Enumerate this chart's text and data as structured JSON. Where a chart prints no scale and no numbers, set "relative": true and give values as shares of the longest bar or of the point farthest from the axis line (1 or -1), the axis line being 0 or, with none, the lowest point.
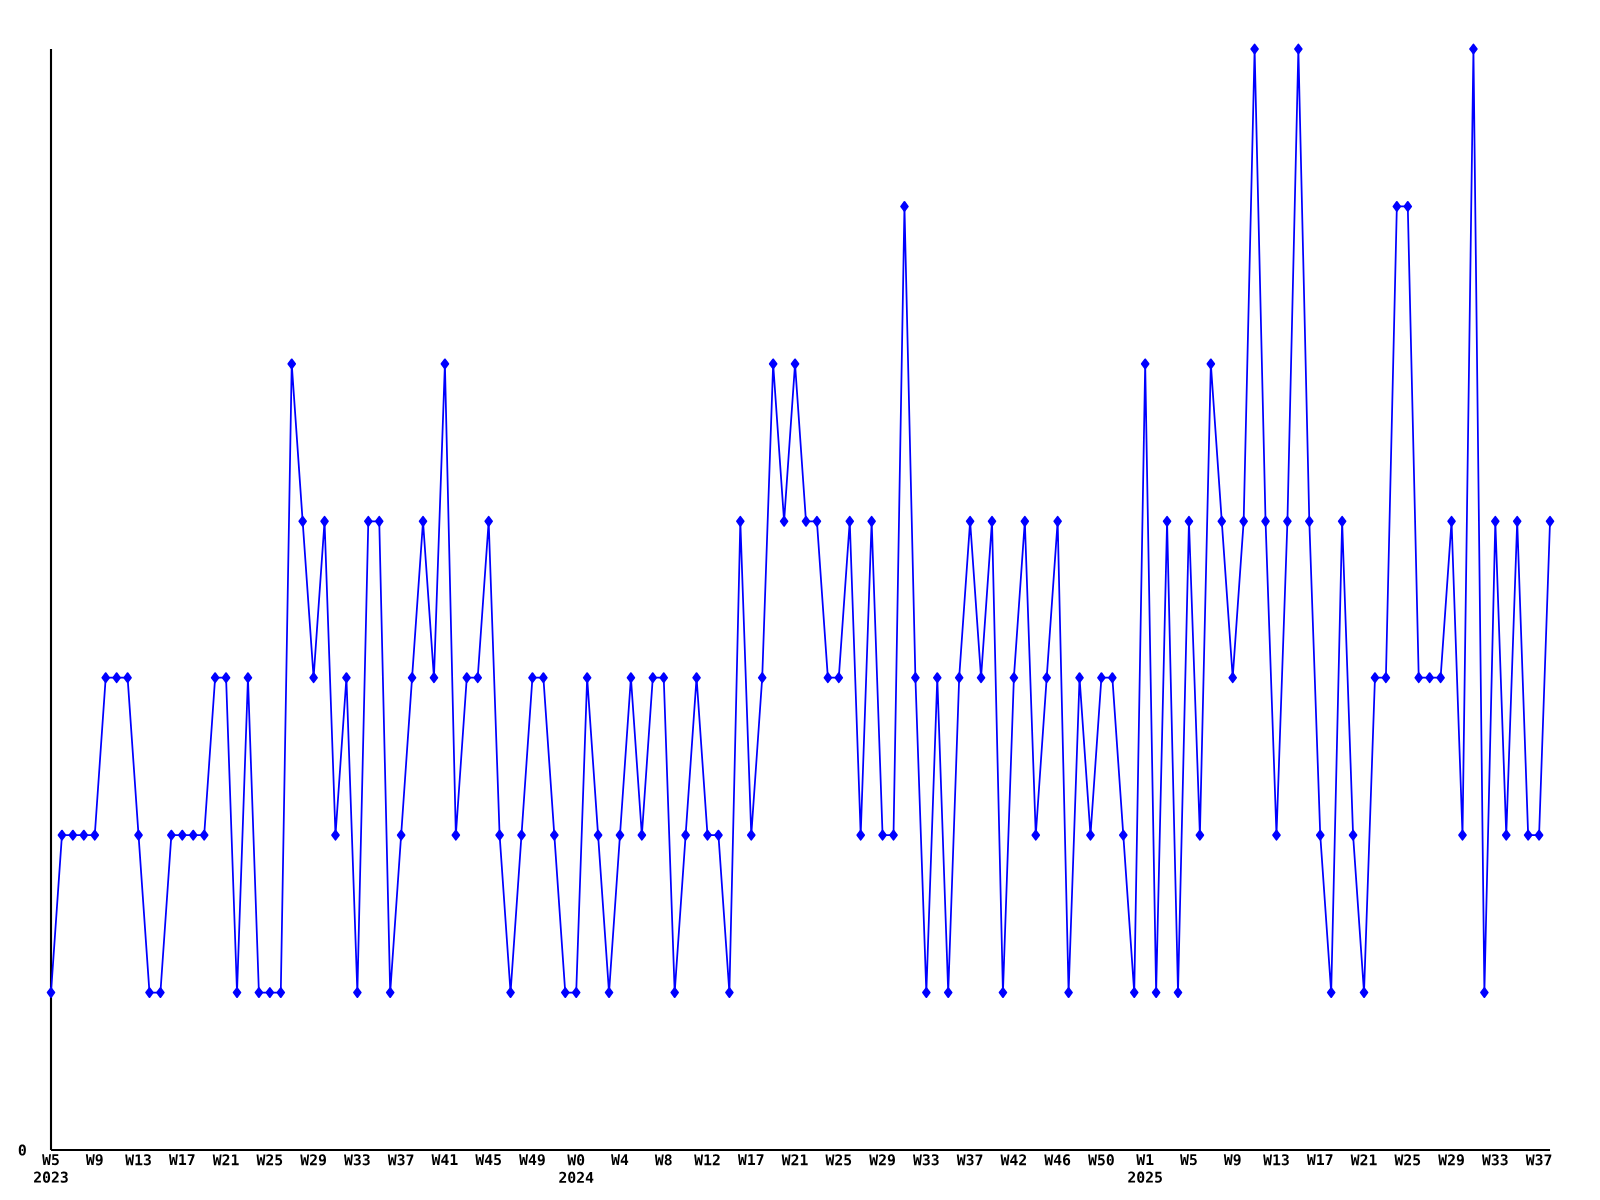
{
  "chart_data": {
    "type": "line",
    "relative": true,
    "color": "#0000ff",
    "marker": "diamond",
    "line_style": "solid",
    "annotations": [
      "0"
    ],
    "categories": [
      "W5 2023",
      null,
      null,
      null,
      "W9",
      null,
      null,
      null,
      "W13",
      null,
      null,
      null,
      "W17",
      null,
      null,
      null,
      "W21",
      null,
      null,
      null,
      "W25",
      null,
      null,
      null,
      "W29",
      null,
      null,
      null,
      "W33",
      null,
      null,
      null,
      "W37",
      null,
      null,
      null,
      "W41",
      null,
      null,
      null,
      "W45",
      null,
      null,
      null,
      "W49",
      null,
      null,
      null,
      "W0 2024",
      null,
      null,
      null,
      "W4",
      null,
      null,
      null,
      "W8",
      null,
      null,
      null,
      "W12",
      null,
      null,
      null,
      "W17",
      null,
      null,
      null,
      "W21",
      null,
      null,
      null,
      "W25",
      null,
      null,
      null,
      "W29",
      null,
      null,
      null,
      "W33",
      null,
      null,
      null,
      "W37",
      null,
      null,
      null,
      "W42",
      null,
      null,
      null,
      "W46",
      null,
      null,
      null,
      "W50",
      null,
      null,
      null,
      "W1 2025",
      null,
      null,
      null,
      "W5",
      null,
      null,
      null,
      "W9",
      null,
      null,
      null,
      "W13",
      null,
      null,
      null,
      "W17",
      null,
      null,
      null,
      "W21",
      null,
      null,
      null,
      "W25",
      null,
      null,
      null,
      "W29",
      null,
      null,
      null,
      "W33",
      null,
      null,
      null,
      "W37",
      null
    ],
    "values": [
      0.143,
      0.286,
      0.286,
      0.286,
      0.286,
      0.429,
      0.429,
      0.429,
      0.286,
      0.143,
      0.143,
      0.286,
      0.286,
      0.286,
      0.286,
      0.429,
      0.429,
      0.143,
      0.429,
      0.143,
      0.143,
      0.143,
      0.714,
      0.571,
      0.429,
      0.571,
      0.286,
      0.429,
      0.143,
      0.571,
      0.571,
      0.143,
      0.286,
      0.429,
      0.571,
      0.429,
      0.714,
      0.286,
      0.429,
      0.429,
      0.571,
      0.286,
      0.143,
      0.286,
      0.429,
      0.429,
      0.286,
      0.143,
      0.143,
      0.429,
      0.286,
      0.143,
      0.286,
      0.429,
      0.286,
      0.429,
      0.429,
      0.143,
      0.286,
      0.429,
      0.286,
      0.286,
      0.143,
      0.571,
      0.286,
      0.429,
      0.714,
      0.571,
      0.714,
      0.571,
      0.571,
      0.429,
      0.429,
      0.571,
      0.286,
      0.571,
      0.286,
      0.286,
      0.857,
      0.429,
      0.143,
      0.429,
      0.143,
      0.429,
      0.571,
      0.429,
      0.571,
      0.143,
      0.429,
      0.571,
      0.286,
      0.429,
      0.571,
      0.143,
      0.429,
      0.286,
      0.429,
      0.429,
      0.286,
      0.143,
      0.714,
      0.143,
      0.571,
      0.143,
      0.571,
      0.286,
      0.714,
      0.571,
      0.429,
      0.571,
      1,
      0.571,
      0.286,
      0.571,
      1,
      0.571,
      0.286,
      0.143,
      0.571,
      0.286,
      0.143,
      0.429,
      0.429,
      0.857,
      0.857,
      0.429,
      0.429,
      0.429,
      0.571,
      0.286,
      1,
      0.143,
      0.571,
      0.286,
      0.571,
      0.286,
      0.286,
      0.571
    ]
  }
}
